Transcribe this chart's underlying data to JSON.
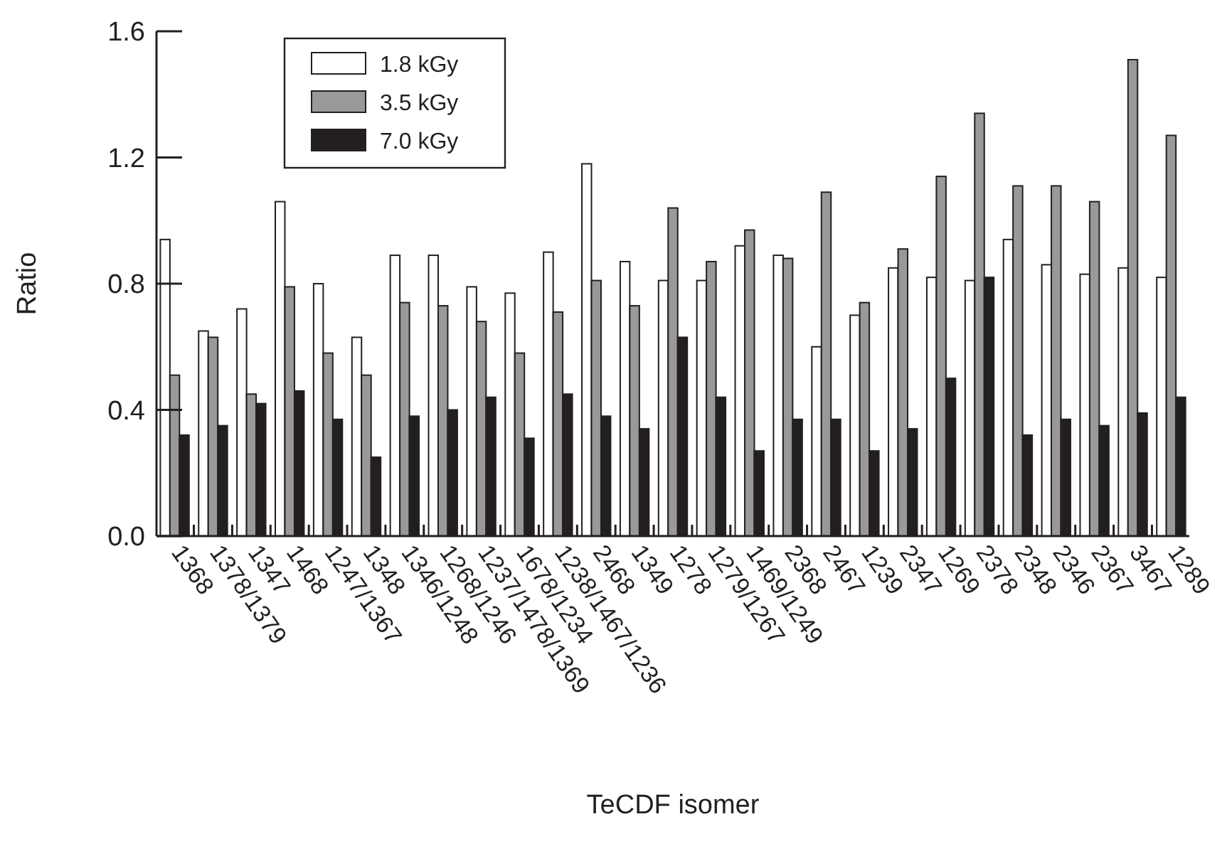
{
  "chart_data": {
    "type": "bar",
    "xlabel": "TeCDF isomer",
    "ylabel": "Ratio",
    "categories": [
      "1368",
      "1378/1379",
      "1347",
      "1468",
      "1247/1367",
      "1348",
      "1346/1248",
      "1268/1246",
      "1237/1478/1369",
      "1678/1234",
      "1238/1467/1236",
      "2468",
      "1349",
      "1278",
      "1279/1267",
      "1469/1249",
      "2368",
      "2467",
      "1239",
      "2347",
      "1269",
      "2378",
      "2348",
      "2346",
      "2367",
      "3467",
      "1289"
    ],
    "series": [
      {
        "name": "1.8 kGy",
        "color": "#ffffff",
        "values": [
          0.94,
          0.65,
          0.72,
          1.06,
          0.8,
          0.63,
          0.89,
          0.89,
          0.79,
          0.77,
          0.9,
          1.18,
          0.87,
          0.81,
          0.81,
          0.92,
          0.89,
          0.6,
          0.7,
          0.85,
          0.82,
          0.81,
          0.94,
          0.86,
          0.83,
          0.85,
          0.82
        ]
      },
      {
        "name": "3.5 kGy",
        "color": "#999999",
        "values": [
          0.51,
          0.63,
          0.45,
          0.79,
          0.58,
          0.51,
          0.74,
          0.73,
          0.68,
          0.58,
          0.71,
          0.81,
          0.73,
          1.04,
          0.87,
          0.97,
          0.88,
          1.09,
          0.74,
          0.91,
          1.14,
          1.34,
          1.11,
          1.11,
          1.06,
          1.51,
          1.27
        ]
      },
      {
        "name": "7.0 kGy",
        "color": "#231f20",
        "values": [
          0.32,
          0.35,
          0.42,
          0.46,
          0.37,
          0.25,
          0.38,
          0.4,
          0.44,
          0.31,
          0.45,
          0.38,
          0.34,
          0.63,
          0.44,
          0.27,
          0.37,
          0.37,
          0.27,
          0.34,
          0.5,
          0.82,
          0.32,
          0.37,
          0.35,
          0.39,
          0.44
        ]
      }
    ],
    "ylim": [
      0,
      1.6
    ],
    "yticks": [
      {
        "value": 0,
        "label": "0.0"
      },
      {
        "value": 0.4,
        "label": "0.4"
      },
      {
        "value": 0.8,
        "label": "0.8"
      },
      {
        "value": 1.2,
        "label": "1.2"
      },
      {
        "value": 1.6,
        "label": "1.6"
      }
    ],
    "grid": false,
    "legend": "top left"
  }
}
